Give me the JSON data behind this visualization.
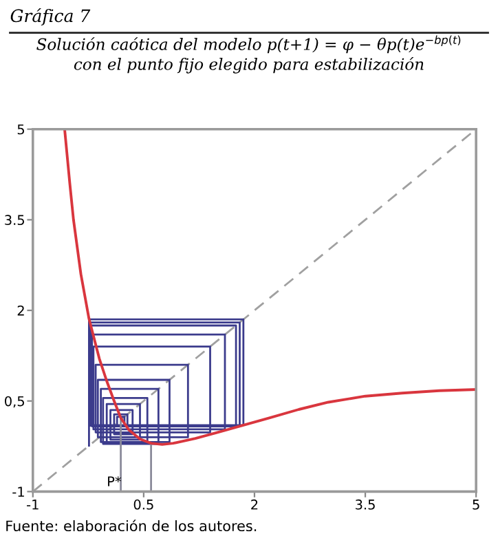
{
  "chart_data": {
    "type": "line",
    "title": "Solución caótica del modelo p(t+1) = φ − θp(t)e$^{−bp(t)}$\ncon el punto fijo elegido para estabilización",
    "annotations": [
      "Gráfica 7",
      "Fuente: elaboración de los autores.",
      {
        "text": "P*",
        "x": 0.1,
        "y": -0.85
      }
    ],
    "xlim": [
      -1,
      5
    ],
    "ylim": [
      -1,
      5
    ],
    "xticks": [
      -1,
      0.5,
      2,
      3.5,
      5
    ],
    "yticks": [
      -1,
      {
        "value": 0.5,
        "label": "0,5"
      },
      2,
      3.5,
      5
    ],
    "grid": false,
    "marker": "none",
    "series": [
      {
        "color": "#a0a0a0",
        "line_style": "dashed",
        "x": [
          -1,
          5
        ],
        "values": [
          -1,
          5
        ]
      },
      {
        "color": "#3b3b8c",
        "line_style": "solid",
        "x": [
          -0.24,
          -0.24,
          1.85,
          1.85,
          -0.23,
          -0.23,
          1.8,
          1.8,
          -0.22,
          -0.22,
          1.75,
          1.75,
          -0.2,
          -0.2,
          1.6,
          1.6,
          -0.18,
          -0.18,
          1.4,
          1.4,
          -0.15,
          -0.15,
          1.1,
          1.1,
          -0.12,
          -0.12,
          0.85,
          0.85,
          -0.08,
          -0.08,
          0.7,
          0.7,
          -0.05,
          -0.05,
          0.55,
          0.55,
          0.0,
          0.0,
          0.45,
          0.45,
          0.05,
          0.05,
          0.35,
          0.35,
          0.1,
          0.1,
          0.28,
          0.28,
          0.14,
          0.14,
          0.24,
          0.24
        ],
        "values": [
          -0.24,
          1.85,
          1.85,
          0.1,
          0.1,
          1.8,
          1.8,
          0.09,
          0.09,
          1.75,
          1.75,
          0.08,
          0.08,
          1.6,
          1.6,
          0.03,
          0.03,
          1.4,
          1.4,
          -0.02,
          -0.02,
          1.1,
          1.1,
          -0.1,
          -0.1,
          0.85,
          0.85,
          -0.18,
          -0.18,
          0.7,
          0.7,
          -0.21,
          -0.21,
          0.55,
          0.55,
          -0.19,
          -0.19,
          0.45,
          0.45,
          -0.14,
          -0.14,
          0.35,
          0.35,
          -0.05,
          -0.05,
          0.28,
          0.28,
          0.08,
          0.08,
          0.24,
          0.24,
          0.14
        ]
      },
      {
        "color": "#8a8a9a",
        "line_style": "solid",
        "x": [
          0.19,
          0.19
        ],
        "values": [
          -1,
          0.22
        ]
      },
      {
        "color": "#8a8a9a",
        "line_style": "solid",
        "x": [
          0.6,
          0.6
        ],
        "values": [
          -1,
          -0.2
        ]
      },
      {
        "color": "#d9363e",
        "line_style": "solid",
        "x": [
          -0.57,
          -0.5,
          -0.45,
          -0.35,
          -0.24,
          -0.1,
          0,
          0.1,
          0.19,
          0.3,
          0.45,
          0.6,
          0.75,
          0.9,
          1.2,
          1.5,
          1.85,
          2.2,
          2.6,
          3,
          3.5,
          4,
          4.5,
          5
        ],
        "values": [
          5,
          4.1,
          3.5,
          2.6,
          1.86,
          1.2,
          0.83,
          0.5,
          0.22,
          0.02,
          -0.13,
          -0.2,
          -0.22,
          -0.2,
          -0.12,
          -0.02,
          0.1,
          0.22,
          0.36,
          0.48,
          0.58,
          0.63,
          0.67,
          0.69
        ]
      }
    ]
  }
}
